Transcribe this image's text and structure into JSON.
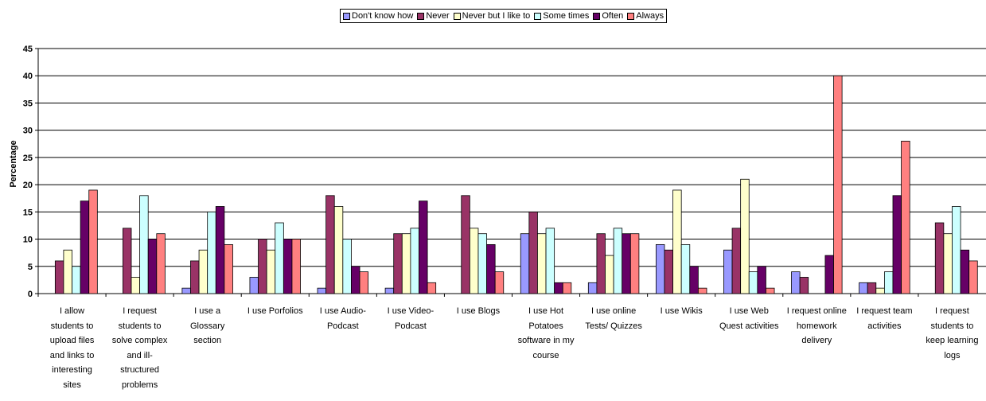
{
  "chart_data": {
    "type": "bar",
    "title": "",
    "xlabel": "",
    "ylabel": "Percentage",
    "ylim": [
      0,
      45
    ],
    "yticks": [
      0,
      5,
      10,
      15,
      20,
      25,
      30,
      35,
      40,
      45
    ],
    "grid": true,
    "legend_position": "top-center",
    "categories": [
      "I allow students to upload files and links to interesting sites",
      "I request students to solve  complex and ill-structured problems",
      "I use a Glossary section",
      "I use Porfolios",
      "I use Audio-Podcast",
      "I use Video-Podcast",
      "I use Blogs",
      "I use Hot Potatoes software in my course",
      "I use online Tests/ Quizzes",
      "I use Wikis",
      "I use Web Quest activities",
      "I request online homework delivery",
      "I request team activities",
      "I request students to keep learning logs"
    ],
    "category_lines": [
      [
        "I allow",
        "students to",
        "upload files",
        "and links to",
        "interesting",
        "sites"
      ],
      [
        "I request",
        "students to",
        "solve  complex",
        "and ill-",
        "structured",
        "problems"
      ],
      [
        "I use a",
        "Glossary",
        "section"
      ],
      [
        "I use Porfolios"
      ],
      [
        "I use Audio-",
        "Podcast"
      ],
      [
        "I use Video-",
        "Podcast"
      ],
      [
        "I use Blogs"
      ],
      [
        "I use Hot",
        "Potatoes",
        "software in my",
        "course"
      ],
      [
        "I use online",
        "Tests/ Quizzes"
      ],
      [
        "I use Wikis"
      ],
      [
        "I use Web",
        "Quest activities"
      ],
      [
        "I request online",
        "homework",
        "delivery"
      ],
      [
        "I request team",
        "activities"
      ],
      [
        "I request",
        "students to",
        "keep learning",
        "logs"
      ]
    ],
    "series": [
      {
        "name": "Don't know how",
        "color": "#9999ff",
        "values": [
          0,
          0,
          1,
          3,
          1,
          1,
          0,
          11,
          2,
          9,
          8,
          4,
          2,
          0
        ]
      },
      {
        "name": "Never",
        "color": "#993366",
        "values": [
          6,
          12,
          6,
          10,
          18,
          11,
          18,
          15,
          11,
          8,
          12,
          3,
          2,
          13
        ]
      },
      {
        "name": "Never but I like to",
        "color": "#ffffcc",
        "values": [
          8,
          3,
          8,
          8,
          16,
          11,
          12,
          11,
          7,
          19,
          21,
          0,
          1,
          11
        ]
      },
      {
        "name": "Some times",
        "color": "#ccffff",
        "values": [
          5,
          18,
          15,
          13,
          10,
          12,
          11,
          12,
          12,
          9,
          4,
          0,
          4,
          16
        ]
      },
      {
        "name": "Often",
        "color": "#660066",
        "values": [
          17,
          10,
          16,
          10,
          5,
          17,
          9,
          2,
          11,
          5,
          5,
          7,
          18,
          8
        ]
      },
      {
        "name": "Always",
        "color": "#ff8080",
        "values": [
          19,
          11,
          9,
          10,
          4,
          2,
          4,
          2,
          11,
          1,
          1,
          40,
          28,
          6
        ]
      }
    ]
  }
}
